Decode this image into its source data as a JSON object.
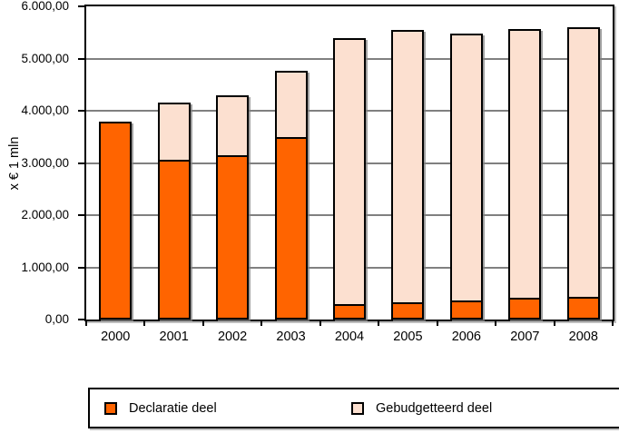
{
  "chart_data": {
    "type": "bar",
    "stacked": true,
    "title": "",
    "categories": [
      "2000",
      "2001",
      "2002",
      "2003",
      "2004",
      "2005",
      "2006",
      "2007",
      "2008"
    ],
    "series": [
      {
        "name": "Declaratie deel",
        "color": "#FF6400",
        "values": [
          3790,
          3060,
          3140,
          3500,
          300,
          325,
          360,
          410,
          440
        ]
      },
      {
        "name": "Gebudgetteerd deel",
        "color": "#FCE0D0",
        "values": [
          0,
          1100,
          1140,
          1265,
          5100,
          5225,
          5120,
          5145,
          5160
        ]
      }
    ],
    "xlabel": "",
    "ylabel": "x € 1 mln",
    "ylim": [
      0,
      6000
    ],
    "ytick_step": 1000,
    "ytick_labels": [
      "0,00",
      "1.000,00",
      "2.000,00",
      "3.000,00",
      "4.000,00",
      "5.000,00",
      "6.000,00"
    ],
    "grid": true,
    "gridline_color": "#808080",
    "legend_position": "bottom"
  }
}
